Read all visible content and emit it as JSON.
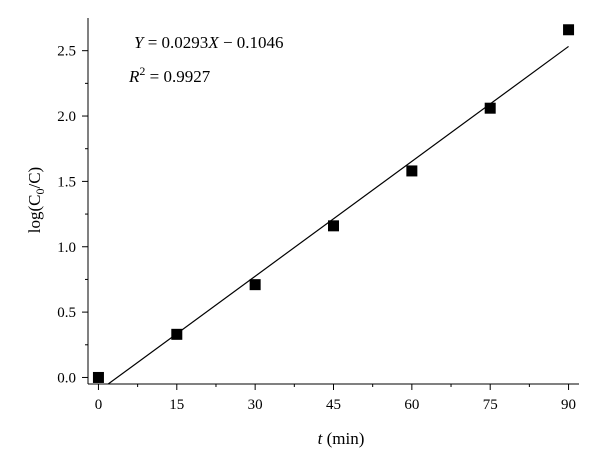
{
  "chart_data": {
    "type": "scatter",
    "xlabel_italic": "t",
    "xlabel_unit": "(min)",
    "ylabel_prefix": "log(C",
    "ylabel_sub": "0",
    "ylabel_suffix": "/C)",
    "xlim": [
      -2,
      92
    ],
    "ylim": [
      -0.05,
      2.75
    ],
    "xticks": [
      0,
      15,
      30,
      45,
      60,
      75,
      90
    ],
    "xtick_labels": [
      "0",
      "15",
      "30",
      "45",
      "60",
      "75",
      "90"
    ],
    "yticks": [
      0.0,
      0.5,
      1.0,
      1.5,
      2.0,
      2.5
    ],
    "ytick_labels": [
      "0.0",
      "0.5",
      "1.0",
      "1.5",
      "2.0",
      "2.5"
    ],
    "series": [
      {
        "marker": "square",
        "color": "#000000",
        "x": [
          0,
          15,
          30,
          45,
          60,
          75,
          90
        ],
        "y": [
          0.0,
          0.33,
          0.71,
          1.16,
          1.58,
          2.06,
          2.66
        ]
      }
    ],
    "fit_line": {
      "slope": 0.0293,
      "intercept": -0.1046,
      "x_range": [
        0,
        90
      ]
    },
    "annotations": {
      "equation_lhs": "Y",
      "equation_mid": " = 0.0293",
      "equation_x": "X",
      "equation_rhs": " − 0.1046",
      "r2_symbol": "R",
      "r2_exp": "2",
      "r2_value": " = 0.9927"
    },
    "grid": false
  }
}
